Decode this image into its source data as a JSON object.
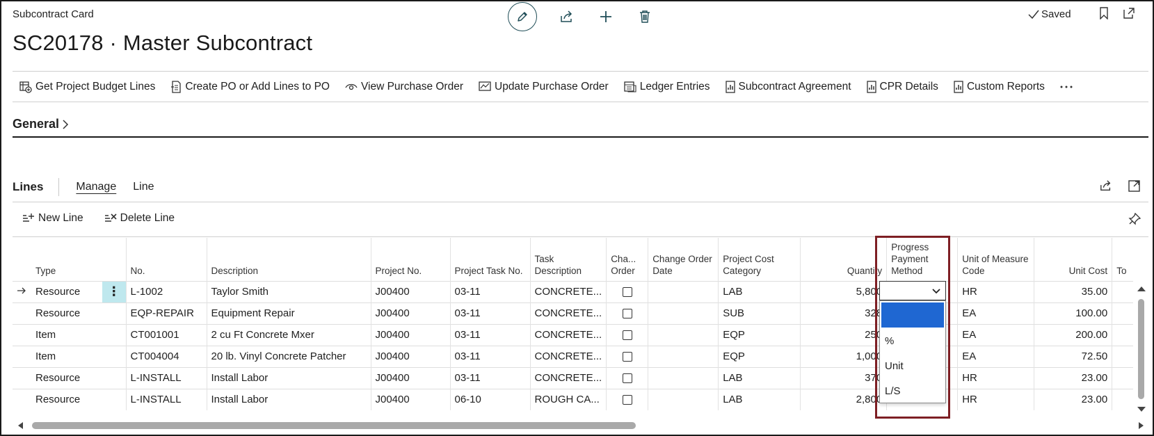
{
  "header": {
    "card_label": "Subcontract Card",
    "saved_label": "Saved",
    "title": "SC20178 · Master Subcontract"
  },
  "actions": [
    {
      "label": "Get Project Budget Lines",
      "icon": "budget-lines-icon"
    },
    {
      "label": "Create PO or Add Lines to PO",
      "icon": "create-po-icon"
    },
    {
      "label": "View Purchase Order",
      "icon": "eye-icon"
    },
    {
      "label": "Update Purchase Order",
      "icon": "update-po-icon"
    },
    {
      "label": "Ledger Entries",
      "icon": "ledger-icon"
    },
    {
      "label": "Subcontract Agreement",
      "icon": "report-icon"
    },
    {
      "label": "CPR Details",
      "icon": "report-icon"
    },
    {
      "label": "Custom Reports",
      "icon": "report-icon"
    }
  ],
  "general": {
    "label": "General"
  },
  "lines": {
    "title": "Lines",
    "tabs": [
      "Manage",
      "Line"
    ],
    "new_line": "New Line",
    "delete_line": "Delete Line"
  },
  "columns": {
    "type": "Type",
    "no": "No.",
    "description": "Description",
    "project_no": "Project No.",
    "project_task_no": "Project Task No.",
    "task_description": "Task Description",
    "change_order": "Cha... Order",
    "change_order_date": "Change Order Date",
    "project_cost_category": "Project Cost Category",
    "quantity": "Quantity",
    "progress_payment_method": "Progress Payment Method",
    "unit_of_measure_code": "Unit of Measure Code",
    "unit_cost": "Unit Cost",
    "next_col": "To"
  },
  "rows": [
    {
      "type": "Resource",
      "no": "L-1002",
      "description": "Taylor Smith",
      "project_no": "J00400",
      "task_no": "03-11",
      "task_desc": "CONCRETE...",
      "cost_cat": "LAB",
      "quantity": "5,800",
      "ppm": "",
      "uom": "HR",
      "unit_cost": "35.00"
    },
    {
      "type": "Resource",
      "no": "EQP-REPAIR",
      "description": "Equipment Repair",
      "project_no": "J00400",
      "task_no": "03-11",
      "task_desc": "CONCRETE...",
      "cost_cat": "SUB",
      "quantity": "328",
      "ppm": "",
      "uom": "EA",
      "unit_cost": "100.00"
    },
    {
      "type": "Item",
      "no": "CT001001",
      "description": "2 cu Ft Concrete Mxer",
      "project_no": "J00400",
      "task_no": "03-11",
      "task_desc": "CONCRETE...",
      "cost_cat": "EQP",
      "quantity": "250",
      "ppm": "",
      "uom": "EA",
      "unit_cost": "200.00"
    },
    {
      "type": "Item",
      "no": "CT004004",
      "description": "20 lb. Vinyl Concrete Patcher",
      "project_no": "J00400",
      "task_no": "03-11",
      "task_desc": "CONCRETE...",
      "cost_cat": "EQP",
      "quantity": "1,000",
      "ppm": "",
      "uom": "EA",
      "unit_cost": "72.50"
    },
    {
      "type": "Resource",
      "no": "L-INSTALL",
      "description": "Install Labor",
      "project_no": "J00400",
      "task_no": "03-11",
      "task_desc": "CONCRETE...",
      "cost_cat": "LAB",
      "quantity": "370",
      "ppm": "",
      "uom": "HR",
      "unit_cost": "23.00"
    },
    {
      "type": "Resource",
      "no": "L-INSTALL",
      "description": "Install Labor",
      "project_no": "J00400",
      "task_no": "06-10",
      "task_desc": "ROUGH CA...",
      "cost_cat": "LAB",
      "quantity": "2,800",
      "ppm": "%",
      "uom": "HR",
      "unit_cost": "23.00"
    }
  ],
  "dropdown": {
    "options": [
      "",
      "%",
      "Unit",
      "L/S"
    ],
    "selected_index": 0
  },
  "colors": {
    "highlight_border": "#7e1f24",
    "selected_option": "#1f67d2",
    "row_menu_bg": "#bfe8ee"
  }
}
